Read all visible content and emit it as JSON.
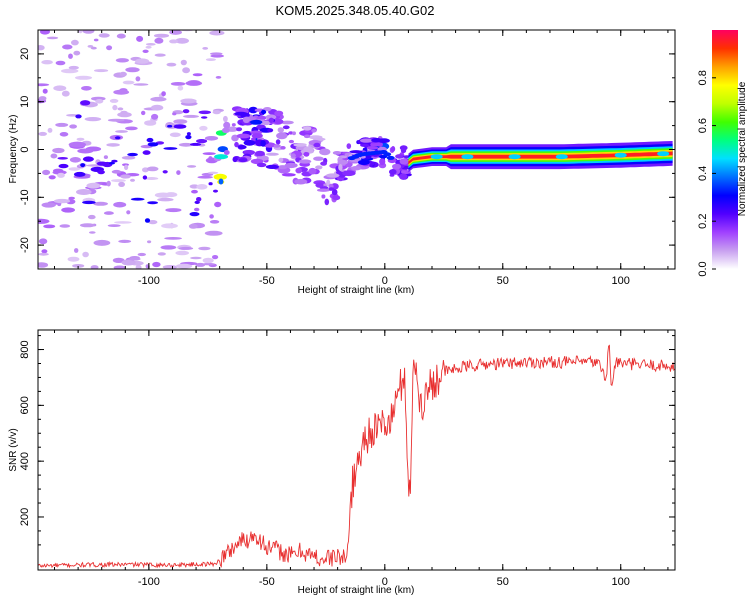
{
  "chart_data": [
    {
      "type": "heatmap",
      "title": "KOM5.2025.348.05.40.G02",
      "xlabel": "Height of straight line (km)",
      "ylabel": "Frequency (Hz)",
      "xlim": [
        -147,
        123
      ],
      "ylim": [
        -25,
        25
      ],
      "xticks": [
        -100,
        -50,
        0,
        50,
        100
      ],
      "yticks": [
        -20,
        -10,
        0,
        10,
        20
      ],
      "xtick_labels": [
        "-100",
        "-50",
        "0",
        "50",
        "100"
      ],
      "ytick_labels": [
        "-20",
        "-10",
        "0",
        "10",
        "20"
      ],
      "colorbar": {
        "label": "Normalized spectral amplitude",
        "range": [
          0,
          1
        ],
        "ticks": [
          0.0,
          0.2,
          0.4,
          0.6,
          0.8
        ],
        "tick_labels": [
          "0.0",
          "0.2",
          "0.4",
          "0.6",
          "0.8"
        ],
        "colors": [
          "#ffffff",
          "#c8a0f0",
          "#a040ff",
          "#5000ff",
          "#0000ff",
          "#0070ff",
          "#00e0ff",
          "#00ff80",
          "#40ff00",
          "#c0ff00",
          "#ffff00",
          "#ffa000",
          "#ff3000",
          "#ff0060"
        ]
      },
      "noise_region_km": [
        -147,
        -70
      ],
      "trend_points": [
        {
          "x": -68,
          "y": 4,
          "amp": 0.18
        },
        {
          "x": -55,
          "y": 3,
          "amp": 0.32
        },
        {
          "x": -45,
          "y": 2,
          "amp": 0.2
        },
        {
          "x": -38,
          "y": -2,
          "amp": 0.18
        },
        {
          "x": -30,
          "y": 0.5,
          "amp": 0.16
        },
        {
          "x": -25,
          "y": -6,
          "amp": 0.18
        },
        {
          "x": -15,
          "y": -2,
          "amp": 0.2
        },
        {
          "x": -10,
          "y": -1,
          "amp": 0.28
        },
        {
          "x": 0,
          "y": -0.5,
          "amp": 0.33
        },
        {
          "x": 7,
          "y": -4,
          "amp": 0.2
        },
        {
          "x": 12,
          "y": -2,
          "amp": 0.45
        },
        {
          "x": 20,
          "y": -1.5,
          "amp": 0.5
        },
        {
          "x": 30,
          "y": -1.5,
          "amp": 0.75
        },
        {
          "x": 50,
          "y": -1.5,
          "amp": 0.85
        },
        {
          "x": 75,
          "y": -1.5,
          "amp": 0.85
        },
        {
          "x": 100,
          "y": -1.2,
          "amp": 0.85
        },
        {
          "x": 123,
          "y": -0.8,
          "amp": 0.85
        }
      ]
    },
    {
      "type": "line",
      "xlabel": "Height of straight line (km)",
      "ylabel": "SNR (v/v)",
      "xlim": [
        -147,
        123
      ],
      "ylim": [
        10,
        870
      ],
      "xticks": [
        -100,
        -50,
        0,
        50,
        100
      ],
      "yticks": [
        200,
        400,
        600,
        800
      ],
      "xtick_labels": [
        "-100",
        "-50",
        "0",
        "50",
        "100"
      ],
      "ytick_labels": [
        "200",
        "400",
        "600",
        "800"
      ],
      "line_color": "#e83030",
      "x": [
        -147,
        -130,
        -110,
        -90,
        -72,
        -68,
        -62,
        -58,
        -55,
        -50,
        -45,
        -40,
        -35,
        -30,
        -25,
        -20,
        -16,
        -15,
        -14,
        -12,
        -10,
        -8,
        -5,
        -3,
        0,
        2,
        4,
        6,
        8,
        9,
        10,
        11,
        12,
        13,
        14,
        16,
        18,
        20,
        22,
        25,
        30,
        35,
        40,
        50,
        60,
        70,
        80,
        90,
        94,
        95,
        96,
        98,
        100,
        110,
        123
      ],
      "values": [
        25,
        28,
        30,
        28,
        32,
        60,
        110,
        120,
        140,
        90,
        80,
        60,
        80,
        55,
        50,
        60,
        45,
        200,
        300,
        380,
        440,
        490,
        520,
        500,
        550,
        520,
        600,
        640,
        720,
        600,
        300,
        350,
        700,
        760,
        640,
        610,
        650,
        680,
        700,
        720,
        730,
        740,
        745,
        750,
        755,
        755,
        755,
        755,
        700,
        840,
        660,
        760,
        750,
        745,
        740
      ]
    }
  ]
}
